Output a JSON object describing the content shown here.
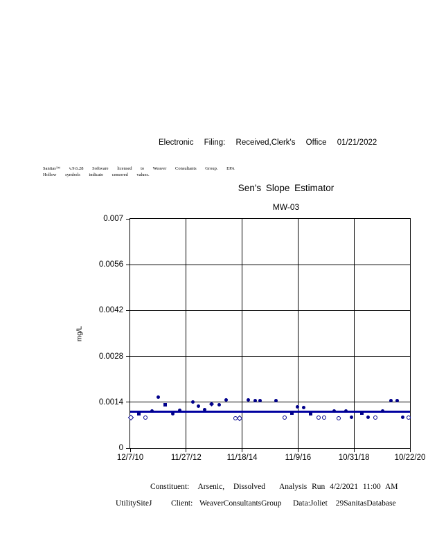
{
  "header": {
    "text": "Electronic Filing: Received,Clerk's Office 01/21/2022"
  },
  "fine_print": {
    "line1": "Sanitas™ v.9.6.28 Software licensed to Weaver Consultants Group. EPA",
    "line2": "Hollow symbols indicate censored values."
  },
  "chart_data": {
    "type": "scatter",
    "title": "Sen's Slope Estimator",
    "subtitle": "MW-03",
    "ylabel": "mg/L",
    "ylim": [
      0,
      0.007
    ],
    "yticks": [
      0,
      0.0014,
      0.0028,
      0.0042,
      0.0056,
      0.007
    ],
    "ytick_labels": [
      "0",
      "0.0014",
      "0.0028",
      "0.0042",
      "0.0056",
      "0.007"
    ],
    "xtick_labels": [
      "12/7/10",
      "11/27/12",
      "11/18/14",
      "11/9/16",
      "10/31/18",
      "10/22/20"
    ],
    "x_range_dates": [
      "12/7/10",
      "10/22/20"
    ],
    "grid": true,
    "legend_position": "none",
    "colors": {
      "marker": "#00008B",
      "trend_line": "#0000A0",
      "axis": "#000000"
    },
    "sen_trend_line": {
      "value_mgL": 0.00112
    },
    "series": [
      {
        "name": "detected values (filled symbols)",
        "fill": "filled",
        "points": [
          {
            "x_frac": 0.03,
            "y_mgL": 0.00104,
            "shape": "square"
          },
          {
            "x_frac": 0.077,
            "y_mgL": 0.00114,
            "shape": "circle"
          },
          {
            "x_frac": 0.101,
            "y_mgL": 0.00155,
            "shape": "circle"
          },
          {
            "x_frac": 0.126,
            "y_mgL": 0.00133,
            "shape": "square"
          },
          {
            "x_frac": 0.153,
            "y_mgL": 0.00104,
            "shape": "circle"
          },
          {
            "x_frac": 0.178,
            "y_mgL": 0.00116,
            "shape": "circle"
          },
          {
            "x_frac": 0.225,
            "y_mgL": 0.00141,
            "shape": "circle"
          },
          {
            "x_frac": 0.245,
            "y_mgL": 0.00129,
            "shape": "circle"
          },
          {
            "x_frac": 0.265,
            "y_mgL": 0.00118,
            "shape": "circle"
          },
          {
            "x_frac": 0.292,
            "y_mgL": 0.00135,
            "shape": "diamond"
          },
          {
            "x_frac": 0.319,
            "y_mgL": 0.00133,
            "shape": "circle"
          },
          {
            "x_frac": 0.342,
            "y_mgL": 0.00146,
            "shape": "circle"
          },
          {
            "x_frac": 0.421,
            "y_mgL": 0.00146,
            "shape": "circle"
          },
          {
            "x_frac": 0.448,
            "y_mgL": 0.00144,
            "shape": "circle"
          },
          {
            "x_frac": 0.465,
            "y_mgL": 0.00144,
            "shape": "circle"
          },
          {
            "x_frac": 0.522,
            "y_mgL": 0.00144,
            "shape": "circle"
          },
          {
            "x_frac": 0.579,
            "y_mgL": 0.00106,
            "shape": "square"
          },
          {
            "x_frac": 0.599,
            "y_mgL": 0.00125,
            "shape": "circle"
          },
          {
            "x_frac": 0.621,
            "y_mgL": 0.00123,
            "shape": "circle"
          },
          {
            "x_frac": 0.644,
            "y_mgL": 0.00104,
            "shape": "square"
          },
          {
            "x_frac": 0.728,
            "y_mgL": 0.00114,
            "shape": "circle"
          },
          {
            "x_frac": 0.77,
            "y_mgL": 0.00114,
            "shape": "circle"
          },
          {
            "x_frac": 0.792,
            "y_mgL": 0.00095,
            "shape": "circle"
          },
          {
            "x_frac": 0.827,
            "y_mgL": 0.00106,
            "shape": "square"
          },
          {
            "x_frac": 0.851,
            "y_mgL": 0.00095,
            "shape": "circle"
          },
          {
            "x_frac": 0.903,
            "y_mgL": 0.00114,
            "shape": "circle"
          },
          {
            "x_frac": 0.931,
            "y_mgL": 0.00144,
            "shape": "circle"
          },
          {
            "x_frac": 0.953,
            "y_mgL": 0.00144,
            "shape": "circle"
          },
          {
            "x_frac": 0.973,
            "y_mgL": 0.00095,
            "shape": "circle"
          }
        ]
      },
      {
        "name": "censored values (hollow symbols)",
        "fill": "hollow",
        "points": [
          {
            "x_frac": 0.0,
            "y_mgL": 0.00095,
            "shape": "diamond"
          },
          {
            "x_frac": 0.054,
            "y_mgL": 0.00095,
            "shape": "circle"
          },
          {
            "x_frac": 0.374,
            "y_mgL": 0.00093,
            "shape": "circle"
          },
          {
            "x_frac": 0.389,
            "y_mgL": 0.00093,
            "shape": "diamond"
          },
          {
            "x_frac": 0.55,
            "y_mgL": 0.00095,
            "shape": "circle"
          },
          {
            "x_frac": 0.671,
            "y_mgL": 0.00095,
            "shape": "circle"
          },
          {
            "x_frac": 0.693,
            "y_mgL": 0.00095,
            "shape": "circle"
          },
          {
            "x_frac": 0.745,
            "y_mgL": 0.00093,
            "shape": "circle"
          },
          {
            "x_frac": 0.876,
            "y_mgL": 0.00095,
            "shape": "circle"
          },
          {
            "x_frac": 0.995,
            "y_mgL": 0.00095,
            "shape": "circle"
          }
        ]
      }
    ]
  },
  "footer": {
    "constituent": "Constituent: Arsenic, Dissolved",
    "analysis_run": "Analysis Run 4/2/2021 11:00 AM",
    "site": "UtilitySiteJ",
    "client": "Client: WeaverConsultantsGroup",
    "data_source": "Data:Joliet 29SanitasDatabase"
  }
}
